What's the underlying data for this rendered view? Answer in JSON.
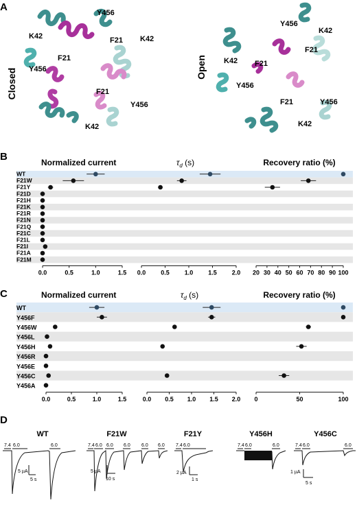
{
  "panels": {
    "A": {
      "label": "A",
      "closed_label": "Closed",
      "open_label": "Open",
      "closed_residues": [
        "K42",
        "Y456",
        "F21",
        "K42",
        "F21",
        "Y456",
        "F21",
        "Y456",
        "K42"
      ],
      "open_residues": [
        "Y456",
        "K42",
        "F21",
        "K42",
        "F21",
        "Y456",
        "F21",
        "Y456",
        "K42"
      ]
    },
    "B": {
      "label": "B"
    },
    "C": {
      "label": "C"
    },
    "D": {
      "label": "D",
      "traces": [
        {
          "title": "WT",
          "ph": [
            "7.4",
            "6.0",
            "6.0"
          ],
          "scale_y": "5 µA",
          "scale_x": "5 s"
        },
        {
          "title": "F21W",
          "ph": [
            "7.4",
            "6.0",
            "6.0",
            "6.0",
            "6.0",
            "6.0"
          ],
          "scale_y": "5 µA",
          "scale_x": "10 s"
        },
        {
          "title": "F21Y",
          "ph": [
            "7.4",
            "6.0"
          ],
          "scale_y": "2 µA",
          "scale_x": "1 s"
        },
        {
          "title": "Y456H",
          "ph": [
            "7.4",
            "6.0",
            "6.0"
          ],
          "scale_y": "",
          "scale_x": ""
        },
        {
          "title": "Y456C",
          "ph": [
            "7.4",
            "6.0",
            "6.0"
          ],
          "scale_y": "1 µA",
          "scale_x": "5 s"
        }
      ]
    }
  },
  "chart_data": [
    {
      "type": "scatter",
      "panel": "B",
      "title": "Normalized current",
      "highlight_color": "#dbe9f6",
      "row_shade_color": "#e6e6e6",
      "categories": [
        "WT",
        "F21W",
        "F21Y",
        "F21D",
        "F21H",
        "F21K",
        "F21R",
        "F21N",
        "F21Q",
        "F21C",
        "F21L",
        "F21I",
        "F21A",
        "F21M"
      ],
      "values": [
        1.0,
        0.58,
        0.15,
        0.0,
        0.0,
        0.0,
        0.0,
        0.0,
        0.0,
        0.0,
        0.0,
        0.05,
        0.0,
        0.0
      ],
      "errors": [
        0.17,
        0.2,
        0.05,
        0.0,
        0.0,
        0.0,
        0.0,
        0.0,
        0.0,
        0.0,
        0.0,
        0.02,
        0.0,
        0.0
      ],
      "xlim": [
        0,
        1.5
      ],
      "xticks": [
        "0.0",
        "0.5",
        "1.0",
        "1.5"
      ]
    },
    {
      "type": "scatter",
      "panel": "B",
      "title": "τd (s)",
      "categories": [
        "WT",
        "F21W",
        "F21Y"
      ],
      "values": [
        1.45,
        0.85,
        0.4
      ],
      "errors": [
        0.22,
        0.1,
        0.05
      ],
      "xlim": [
        0,
        2.0
      ],
      "xticks": [
        "0.0",
        "0.5",
        "1.0",
        "1.5",
        "2.0"
      ]
    },
    {
      "type": "scatter",
      "panel": "B",
      "title": "Recovery ratio (%)",
      "categories": [
        "WT",
        "F21W",
        "F21Y"
      ],
      "values": [
        100,
        68,
        35
      ],
      "errors": [
        0,
        7,
        7
      ],
      "xlim": [
        20,
        100
      ],
      "xticks": [
        "20",
        "30",
        "40",
        "50",
        "60",
        "70",
        "80",
        "90",
        "100"
      ]
    },
    {
      "type": "scatter",
      "panel": "C",
      "title": "Normalized current",
      "categories": [
        "WT",
        "Y456F",
        "Y456W",
        "Y456L",
        "Y456H",
        "Y456R",
        "Y456E",
        "Y456C",
        "Y456A"
      ],
      "values": [
        1.0,
        1.1,
        0.18,
        0.02,
        0.08,
        0.0,
        0.0,
        0.05,
        0.0
      ],
      "errors": [
        0.15,
        0.1,
        0.04,
        0.0,
        0.03,
        0.0,
        0.0,
        0.04,
        0.0
      ],
      "xlim": [
        0,
        1.5
      ],
      "xticks": [
        "0.0",
        "0.5",
        "1.0",
        "1.5"
      ]
    },
    {
      "type": "scatter",
      "panel": "C",
      "title": "τd (s)",
      "categories": [
        "WT",
        "Y456F",
        "Y456W",
        "Y456H",
        "Y456C"
      ],
      "values": [
        1.45,
        1.45,
        0.62,
        0.35,
        0.45
      ],
      "errors": [
        0.2,
        0.08,
        0.04,
        0.0,
        0.0
      ],
      "xlim": [
        0,
        2.0
      ],
      "xticks": [
        "0.0",
        "0.5",
        "1.0",
        "1.5",
        "2.0"
      ]
    },
    {
      "type": "scatter",
      "panel": "C",
      "title": "Recovery ratio (%)",
      "categories": [
        "WT",
        "Y456F",
        "Y456W",
        "Y456H",
        "Y456C"
      ],
      "values": [
        100,
        100,
        60,
        52,
        32
      ],
      "errors": [
        0,
        0,
        3,
        6,
        6
      ],
      "xlim": [
        0,
        100
      ],
      "xticks": [
        "0",
        "50",
        "100"
      ]
    }
  ]
}
